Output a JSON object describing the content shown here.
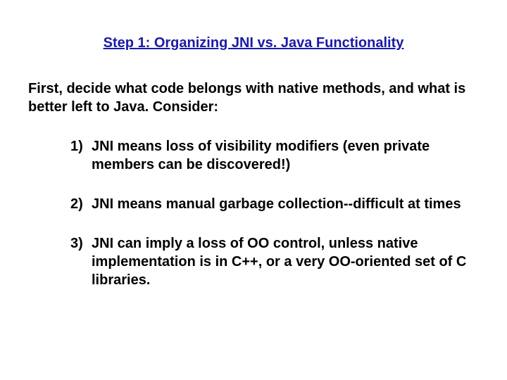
{
  "title_color": "#1a1aa6",
  "body_color": "#000000",
  "background_color": "#ffffff",
  "title": "Step 1: Organizing JNI vs. Java Functionality",
  "intro": "First, decide what code belongs with native methods, and what is better left to Java.  Consider:",
  "points": [
    {
      "num": "1)",
      "text": "JNI means loss of visibility modifiers (even private members can be discovered!)"
    },
    {
      "num": "2)",
      "text": "JNI means manual garbage collection--difficult at times"
    },
    {
      "num": "3)",
      "text": "JNI can imply a loss of OO control, unless native implementation is in C++, or a very OO-oriented set of C libraries."
    }
  ]
}
